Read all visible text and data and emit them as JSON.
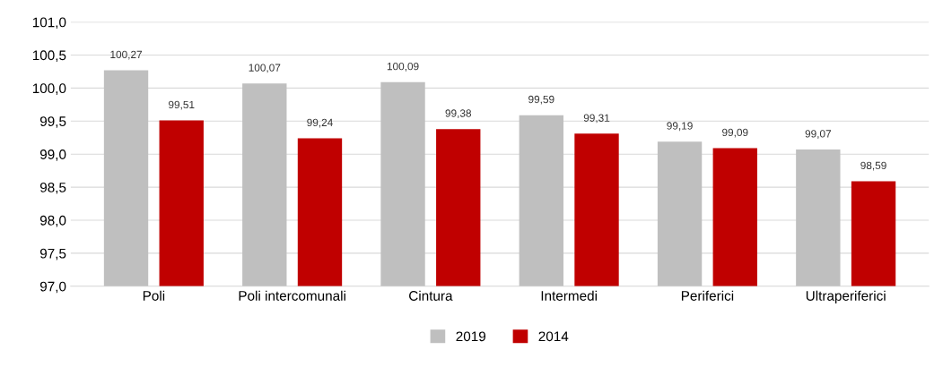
{
  "chart_data": {
    "type": "bar",
    "categories": [
      "Poli",
      "Poli intercomunali",
      "Cintura",
      "Intermedi",
      "Periferici",
      "Ultraperiferici"
    ],
    "series": [
      {
        "name": "2019",
        "color": "#bfbfbf",
        "values": [
          100.27,
          100.07,
          100.09,
          99.59,
          99.19,
          99.07
        ],
        "value_labels": [
          "100,27",
          "100,07",
          "100,09",
          "99,59",
          "99,19",
          "99,07"
        ]
      },
      {
        "name": "2014",
        "color": "#c00000",
        "values": [
          99.51,
          99.24,
          99.38,
          99.31,
          99.09,
          98.59
        ],
        "value_labels": [
          "99,51",
          "99,24",
          "99,38",
          "99,31",
          "99,09",
          "98,59"
        ]
      }
    ],
    "ylim": [
      97,
      101
    ],
    "yticks": [
      {
        "value": 97,
        "label": "97,0"
      },
      {
        "value": 97.5,
        "label": "97,5"
      },
      {
        "value": 98,
        "label": "98,0"
      },
      {
        "value": 98.5,
        "label": "98,5"
      },
      {
        "value": 99,
        "label": "99,0"
      },
      {
        "value": 99.5,
        "label": "99,5"
      },
      {
        "value": 100,
        "label": "100,0"
      },
      {
        "value": 100.5,
        "label": "100,5"
      },
      {
        "value": 101,
        "label": "101,0"
      }
    ],
    "grid": "y",
    "legend": "bottom"
  }
}
